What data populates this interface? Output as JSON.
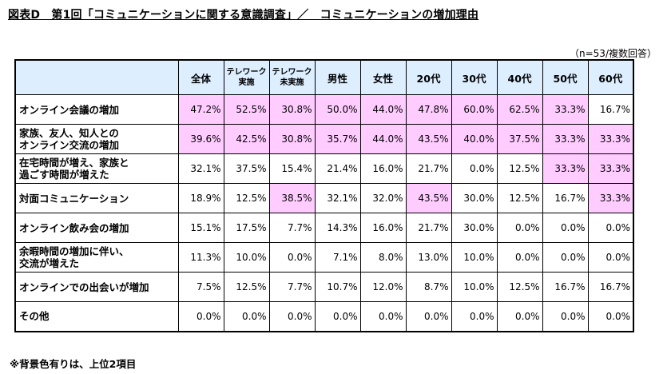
{
  "title": "図表D　第1回「コミュニケーションに関する意識調査」／　コミュニケーションの増加理由",
  "note_top": "（n=53/複数回答）",
  "note_bottom": "※背景色有りは、上位2項目",
  "highlight_color": "#ffccff",
  "header_color": "#ddeeff",
  "columns": [
    {
      "lines": [
        "全体"
      ]
    },
    {
      "lines": [
        "テレワーク",
        "実施"
      ]
    },
    {
      "lines": [
        "テレワーク",
        "未実施"
      ]
    },
    {
      "lines": [
        "男性"
      ]
    },
    {
      "lines": [
        "女性"
      ]
    },
    {
      "lines": [
        "20代"
      ]
    },
    {
      "lines": [
        "30代"
      ]
    },
    {
      "lines": [
        "40代"
      ]
    },
    {
      "lines": [
        "50代"
      ]
    },
    {
      "lines": [
        "60代"
      ]
    }
  ],
  "rows": [
    {
      "label": [
        "オンライン会議の増加"
      ],
      "values": [
        "47.2%",
        "52.5%",
        "30.8%",
        "50.0%",
        "44.0%",
        "47.8%",
        "60.0%",
        "62.5%",
        "33.3%",
        "16.7%"
      ],
      "highlight": [
        true,
        true,
        true,
        true,
        true,
        true,
        true,
        true,
        true,
        false
      ]
    },
    {
      "label": [
        "家族、友人、知人との",
        "オンライン交流の増加"
      ],
      "values": [
        "39.6%",
        "42.5%",
        "30.8%",
        "35.7%",
        "44.0%",
        "43.5%",
        "40.0%",
        "37.5%",
        "33.3%",
        "33.3%"
      ],
      "highlight": [
        true,
        true,
        true,
        true,
        true,
        true,
        true,
        true,
        true,
        true
      ]
    },
    {
      "label": [
        "在宅時間が増え、家族と",
        "過ごす時間が増えた"
      ],
      "values": [
        "32.1%",
        "37.5%",
        "15.4%",
        "21.4%",
        "16.0%",
        "21.7%",
        "0.0%",
        "12.5%",
        "33.3%",
        "33.3%"
      ],
      "highlight": [
        false,
        false,
        false,
        false,
        false,
        false,
        false,
        false,
        true,
        true
      ]
    },
    {
      "label": [
        "対面コミュニケーション"
      ],
      "values": [
        "18.9%",
        "12.5%",
        "38.5%",
        "32.1%",
        "32.0%",
        "43.5%",
        "30.0%",
        "12.5%",
        "16.7%",
        "33.3%"
      ],
      "highlight": [
        false,
        false,
        true,
        false,
        false,
        true,
        false,
        false,
        false,
        true
      ]
    },
    {
      "label": [
        "オンライン飲み会の増加"
      ],
      "values": [
        "15.1%",
        "17.5%",
        "7.7%",
        "14.3%",
        "16.0%",
        "21.7%",
        "30.0%",
        "0.0%",
        "0.0%",
        "0.0%"
      ],
      "highlight": [
        false,
        false,
        false,
        false,
        false,
        false,
        false,
        false,
        false,
        false
      ]
    },
    {
      "label": [
        "余暇時間の増加に伴い、",
        "交流が増えた"
      ],
      "values": [
        "11.3%",
        "10.0%",
        "0.0%",
        "7.1%",
        "8.0%",
        "13.0%",
        "10.0%",
        "0.0%",
        "0.0%",
        "0.0%"
      ],
      "highlight": [
        false,
        false,
        false,
        false,
        false,
        false,
        false,
        false,
        false,
        false
      ]
    },
    {
      "label": [
        "オンラインでの出会いが増加"
      ],
      "values": [
        "7.5%",
        "12.5%",
        "7.7%",
        "10.7%",
        "12.0%",
        "8.7%",
        "10.0%",
        "12.5%",
        "16.7%",
        "16.7%"
      ],
      "highlight": [
        false,
        false,
        false,
        false,
        false,
        false,
        false,
        false,
        false,
        false
      ]
    },
    {
      "label": [
        "その他"
      ],
      "values": [
        "0.0%",
        "0.0%",
        "0.0%",
        "0.0%",
        "0.0%",
        "0.0%",
        "0.0%",
        "0.0%",
        "0.0%",
        "0.0%"
      ],
      "highlight": [
        false,
        false,
        false,
        false,
        false,
        false,
        false,
        false,
        false,
        false
      ]
    }
  ]
}
